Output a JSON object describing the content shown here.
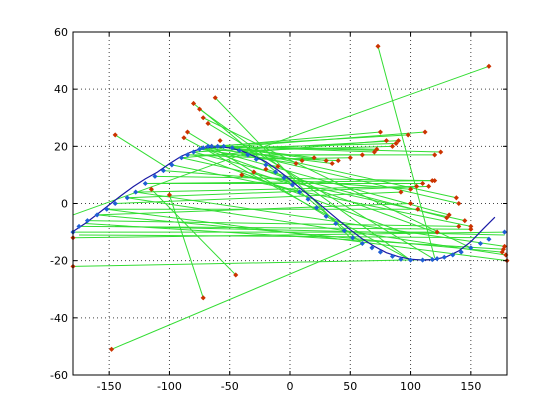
{
  "chart_data": {
    "type": "scatter",
    "title": "",
    "xlabel": "",
    "ylabel": "",
    "xlim": [
      -180,
      180
    ],
    "ylim": [
      -60,
      60
    ],
    "grid": true,
    "grid_style": "dotted",
    "x_ticks": [
      -150,
      -100,
      -50,
      0,
      50,
      100,
      150
    ],
    "x_tick_labels": [
      "-150",
      "-100",
      "-50",
      "0",
      "50",
      "100",
      "150"
    ],
    "y_ticks": [
      -60,
      -40,
      -20,
      0,
      20,
      40,
      60
    ],
    "y_tick_labels": [
      "-60",
      "-40",
      "-20",
      "0",
      "20",
      "40",
      "60"
    ],
    "colors": {
      "curve": "#1a1aa6",
      "curve_points": "#1f5fd6",
      "correspondence_lines": "#33dd33",
      "outliers": "#cc3300",
      "axes": "#000000",
      "grid": "#444444"
    },
    "curve": {
      "x": [
        -180,
        -170,
        -160,
        -150,
        -140,
        -130,
        -120,
        -110,
        -100,
        -90,
        -80,
        -70,
        -60,
        -50,
        -40,
        -30,
        -20,
        -10,
        0,
        10,
        20,
        30,
        40,
        50,
        60,
        70,
        80,
        90,
        100,
        110,
        120,
        130,
        140,
        150,
        160,
        170
      ],
      "y": [
        -9.8,
        -7,
        -3.8,
        -0.5,
        2.8,
        5.9,
        8.6,
        11.0,
        13.9,
        16.6,
        18.4,
        19.5,
        19.8,
        19.5,
        18.4,
        16.6,
        14.6,
        11.7,
        8.4,
        4.8,
        1.4,
        -2.2,
        -5.7,
        -9.2,
        -12.4,
        -15.0,
        -17.2,
        -18.6,
        -19.5,
        -19.8,
        -19.6,
        -18.6,
        -16.6,
        -13.4,
        -9.0,
        -4.8
      ]
    },
    "curve_points": {
      "x": [
        -180,
        -175,
        -168,
        -160,
        -152,
        -145,
        -135,
        -128,
        -120,
        -112,
        -105,
        -98,
        -90,
        -85,
        -80,
        -75,
        -72,
        -68,
        -65,
        -60,
        -55,
        -48,
        -42,
        -35,
        -28,
        -20,
        -12,
        -5,
        2,
        8,
        15,
        22,
        30,
        38,
        45,
        52,
        60,
        68,
        75,
        85,
        92,
        100,
        110,
        118,
        122,
        128,
        135,
        142,
        150,
        158,
        165,
        178
      ],
      "y": [
        -10,
        -8,
        -6,
        -4,
        -2,
        0,
        2,
        4,
        7,
        9.5,
        11.5,
        13.5,
        16,
        17,
        18,
        19,
        19.5,
        20,
        20,
        20,
        20,
        19.5,
        18.5,
        17,
        15.5,
        13.5,
        11,
        9,
        6.5,
        4,
        1.5,
        -1.5,
        -4.5,
        -7,
        -9.5,
        -12,
        -14,
        -15.5,
        -17,
        -18.5,
        -19.5,
        -19.8,
        -19.8,
        -19.6,
        -19.3,
        -18.8,
        -18,
        -17,
        -15.5,
        -14,
        -12.5,
        -10
      ]
    },
    "outliers": {
      "x": [
        73,
        165,
        -80,
        -75,
        -62,
        -72,
        -68,
        -85,
        -88,
        -145,
        -115,
        -100,
        -65,
        -58,
        -45,
        -72,
        -148,
        -180,
        -180,
        178,
        180,
        176,
        179,
        177,
        150,
        145,
        130,
        140,
        138,
        132,
        120,
        125,
        118,
        110,
        100,
        105,
        112,
        98,
        90,
        88,
        85,
        80,
        75,
        72,
        70,
        60,
        50,
        40,
        35,
        30,
        20,
        10,
        5,
        -10,
        -20,
        -30,
        -40,
        92,
        100,
        140,
        150,
        106,
        115,
        120,
        122
      ],
      "y": [
        55,
        48,
        35,
        33,
        37,
        30,
        28,
        25,
        23,
        24,
        5,
        3,
        20,
        22,
        -25,
        -33,
        -51,
        -12,
        -22,
        -15,
        -20,
        -17,
        -18,
        -16,
        -8,
        -6,
        -5,
        0,
        2,
        -4,
        17,
        18,
        8,
        7,
        5,
        6,
        25,
        24,
        22,
        21,
        20,
        22,
        25,
        19,
        18,
        17,
        16,
        15,
        14,
        15,
        16,
        15,
        14,
        13,
        12,
        11,
        10,
        4,
        0,
        -8,
        -9,
        -2,
        6,
        8,
        -10
      ]
    },
    "correspondence_lines": [
      [
        [
          73,
          55
        ],
        [
          120,
          -19
        ]
      ],
      [
        [
          165,
          48
        ],
        [
          -180,
          -4
        ]
      ],
      [
        [
          -80,
          35
        ],
        [
          60,
          -14
        ]
      ],
      [
        [
          -75,
          33
        ],
        [
          100,
          -19.8
        ]
      ],
      [
        [
          -62,
          37
        ],
        [
          50,
          -12
        ]
      ],
      [
        [
          -72,
          30
        ],
        [
          150,
          -15.5
        ]
      ],
      [
        [
          -68,
          28
        ],
        [
          120,
          -19.6
        ]
      ],
      [
        [
          -85,
          25
        ],
        [
          40,
          -7
        ]
      ],
      [
        [
          -88,
          23
        ],
        [
          100,
          -19.8
        ]
      ],
      [
        [
          -145,
          24
        ],
        [
          -100,
          12
        ]
      ],
      [
        [
          -115,
          5
        ],
        [
          -45,
          -25
        ]
      ],
      [
        [
          -100,
          3
        ],
        [
          -72,
          -33
        ]
      ],
      [
        [
          -148,
          -51
        ],
        [
          60,
          -14
        ]
      ],
      [
        [
          -180,
          -12
        ],
        [
          178,
          -10
        ]
      ],
      [
        [
          -180,
          -22
        ],
        [
          120,
          -19.6
        ]
      ],
      [
        [
          178,
          -15
        ],
        [
          -128,
          4
        ]
      ],
      [
        [
          180,
          -20
        ],
        [
          -152,
          -2
        ]
      ],
      [
        [
          176,
          -17
        ],
        [
          -160,
          -4
        ]
      ],
      [
        [
          179,
          -18
        ],
        [
          -135,
          2
        ]
      ],
      [
        [
          177,
          -16
        ],
        [
          -170,
          -7
        ]
      ],
      [
        [
          150,
          -8
        ],
        [
          -98,
          13.5
        ]
      ],
      [
        [
          145,
          -6
        ],
        [
          -90,
          16
        ]
      ],
      [
        [
          130,
          -5
        ],
        [
          -80,
          18
        ]
      ],
      [
        [
          140,
          0
        ],
        [
          -65,
          20
        ]
      ],
      [
        [
          138,
          2
        ],
        [
          -55,
          20
        ]
      ],
      [
        [
          132,
          -4
        ],
        [
          -72,
          19.5
        ]
      ],
      [
        [
          120,
          17
        ],
        [
          -85,
          17
        ]
      ],
      [
        [
          125,
          18
        ],
        [
          -60,
          20
        ]
      ],
      [
        [
          118,
          8
        ],
        [
          -112,
          9.5
        ]
      ],
      [
        [
          110,
          7
        ],
        [
          -120,
          7
        ]
      ],
      [
        [
          100,
          5
        ],
        [
          -105,
          11.5
        ]
      ],
      [
        [
          105,
          6
        ],
        [
          -128,
          4
        ]
      ],
      [
        [
          112,
          25
        ],
        [
          -75,
          19
        ]
      ],
      [
        [
          98,
          24
        ],
        [
          -68,
          20
        ]
      ],
      [
        [
          90,
          22
        ],
        [
          -80,
          18
        ]
      ],
      [
        [
          88,
          21
        ],
        [
          -48,
          19.5
        ]
      ],
      [
        [
          85,
          20
        ],
        [
          -42,
          18.5
        ]
      ],
      [
        [
          80,
          22
        ],
        [
          -90,
          16
        ]
      ],
      [
        [
          75,
          25
        ],
        [
          -60,
          20
        ]
      ],
      [
        [
          72,
          19
        ],
        [
          -65,
          20
        ]
      ],
      [
        [
          70,
          18
        ],
        [
          -55,
          20
        ]
      ],
      [
        [
          60,
          17
        ],
        [
          -35,
          17
        ]
      ],
      [
        [
          50,
          16
        ],
        [
          -28,
          15.5
        ]
      ],
      [
        [
          40,
          15
        ],
        [
          -85,
          17
        ]
      ],
      [
        [
          35,
          14
        ],
        [
          -72,
          19.5
        ]
      ],
      [
        [
          30,
          15
        ],
        [
          -60,
          20
        ]
      ],
      [
        [
          20,
          16
        ],
        [
          -48,
          19.5
        ]
      ],
      [
        [
          10,
          15
        ],
        [
          -42,
          18.5
        ]
      ],
      [
        [
          5,
          14
        ],
        [
          -75,
          19
        ]
      ],
      [
        [
          -10,
          13
        ],
        [
          -20,
          13.5
        ]
      ],
      [
        [
          -20,
          12
        ],
        [
          -12,
          11
        ]
      ],
      [
        [
          -30,
          11
        ],
        [
          2,
          6.5
        ]
      ],
      [
        [
          -40,
          10
        ],
        [
          8,
          4
        ]
      ],
      [
        [
          92,
          4
        ],
        [
          -145,
          0
        ]
      ],
      [
        [
          100,
          0
        ],
        [
          -160,
          -4
        ]
      ],
      [
        [
          140,
          -8
        ],
        [
          -168,
          -6
        ]
      ],
      [
        [
          150,
          -9
        ],
        [
          -175,
          -8
        ]
      ],
      [
        [
          106,
          -2
        ],
        [
          -152,
          -2
        ]
      ],
      [
        [
          115,
          6
        ],
        [
          -135,
          2
        ]
      ],
      [
        [
          120,
          8
        ],
        [
          -120,
          7
        ]
      ],
      [
        [
          122,
          -10
        ],
        [
          -180,
          -10
        ]
      ],
      [
        [
          178,
          -11
        ],
        [
          -145,
          -8
        ]
      ],
      [
        [
          165,
          -12
        ],
        [
          -175,
          -11
        ]
      ],
      [
        [
          -70,
          19
        ],
        [
          120,
          -10
        ]
      ],
      [
        [
          -80,
          17
        ],
        [
          100,
          -11
        ]
      ]
    ]
  }
}
